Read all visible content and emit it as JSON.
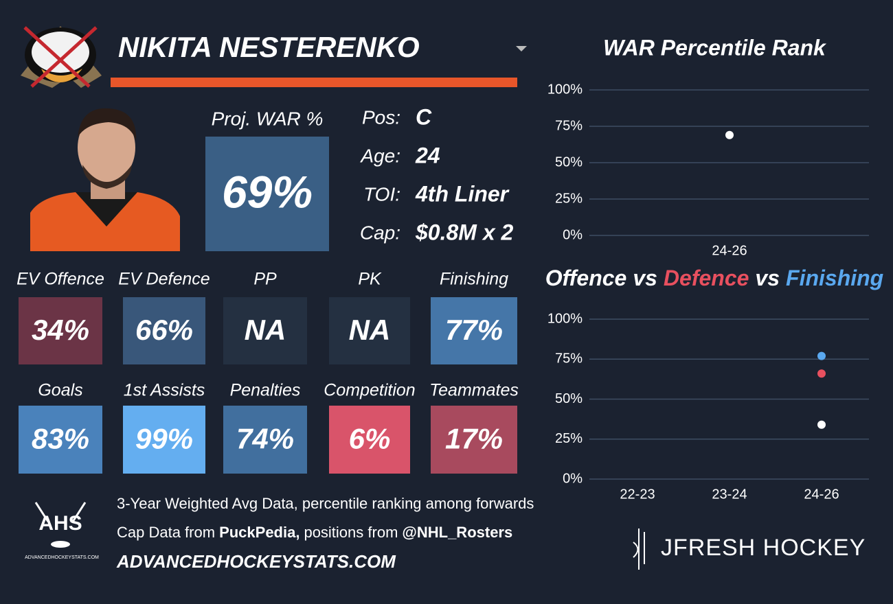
{
  "header": {
    "player": "NIKITA NESTERENKO"
  },
  "proj": {
    "label": "Proj. WAR %",
    "value": "69%",
    "color": "#3a5f85"
  },
  "info": [
    {
      "label": "Pos:",
      "value": "C"
    },
    {
      "label": "Age:",
      "value": "24"
    },
    {
      "label": "TOI:",
      "value": "4th Liner"
    },
    {
      "label": "Cap:",
      "value": "$0.8M x 2"
    }
  ],
  "tiles": [
    [
      {
        "label": "EV Offence",
        "value": "34%",
        "color": "#6b3446"
      },
      {
        "label": "EV Defence",
        "value": "66%",
        "color": "#39577a"
      },
      {
        "label": "PP",
        "value": "NA",
        "color": "#243041"
      },
      {
        "label": "PK",
        "value": "NA",
        "color": "#243041"
      },
      {
        "label": "Finishing",
        "value": "77%",
        "color": "#4576a8"
      }
    ],
    [
      {
        "label": "Goals",
        "value": "83%",
        "color": "#4a82bb"
      },
      {
        "label": "1st Assists",
        "value": "99%",
        "color": "#64aef0"
      },
      {
        "label": "Penalties",
        "value": "74%",
        "color": "#416f9e"
      },
      {
        "label": "Competition",
        "value": "6%",
        "color": "#d9546a"
      },
      {
        "label": "Teammates",
        "value": "17%",
        "color": "#a84a5e"
      }
    ]
  ],
  "footer": {
    "line1": "3-Year Weighted Avg Data, percentile ranking among forwards",
    "line2": [
      "Cap Data from",
      "PuckPedia,",
      "positions from",
      "@NHL_Rosters"
    ],
    "site": "ADVANCEDHOCKEYSTATS.COM",
    "logo": "AHS",
    "logo_caption": "ADVANCEDHOCKEYSTATS.COM",
    "brand": "JFRESH HOCKEY"
  },
  "chart_data": [
    {
      "type": "scatter",
      "title": "WAR Percentile Rank",
      "categories": [
        "24-26"
      ],
      "series": [
        {
          "color": "#ffffff",
          "values": [
            69
          ]
        }
      ],
      "ylim": [
        0,
        100
      ],
      "yticks": [
        {
          "value": 0,
          "label": "0%"
        },
        {
          "value": 25,
          "label": "25%"
        },
        {
          "value": 50,
          "label": "50%"
        },
        {
          "value": 75,
          "label": "75%"
        },
        {
          "value": 100,
          "label": "100%"
        }
      ],
      "grid": true
    },
    {
      "type": "scatter",
      "title_parts": [
        {
          "text": "Offence",
          "color": "#ffffff"
        },
        {
          "text": "vs",
          "color": "#ffffff"
        },
        {
          "text": "Defence",
          "color": "#e8505f"
        },
        {
          "text": "vs",
          "color": "#ffffff"
        },
        {
          "text": "Finishing",
          "color": "#5aa8ef"
        }
      ],
      "categories": [
        "22-23",
        "23-24",
        "24-26"
      ],
      "series": [
        {
          "color": "#ffffff",
          "values": [
            null,
            null,
            34
          ]
        },
        {
          "color": "#e8505f",
          "values": [
            null,
            null,
            66
          ]
        },
        {
          "color": "#5aa8ef",
          "values": [
            null,
            null,
            77
          ]
        }
      ],
      "ylim": [
        0,
        100
      ],
      "yticks": [
        {
          "value": 0,
          "label": "0%"
        },
        {
          "value": 25,
          "label": "25%"
        },
        {
          "value": 50,
          "label": "50%"
        },
        {
          "value": 75,
          "label": "75%"
        },
        {
          "value": 100,
          "label": "100%"
        }
      ],
      "grid": true
    }
  ]
}
